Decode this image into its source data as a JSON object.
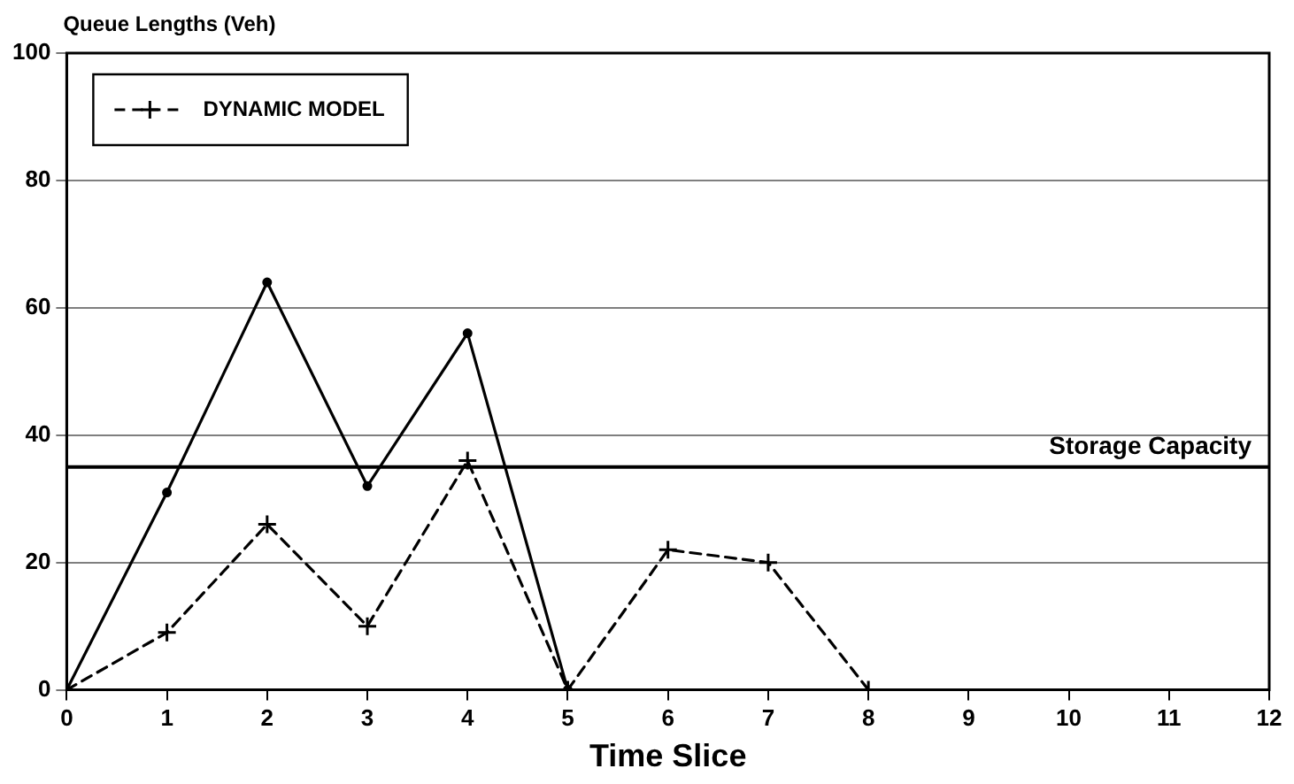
{
  "chart_data": {
    "type": "line",
    "ylabel": "Queue Lengths (Veh)",
    "xlabel": "Time Slice",
    "x": [
      0,
      1,
      2,
      3,
      4,
      5,
      6,
      7,
      8
    ],
    "series": [
      {
        "color": "#000000",
        "marker": "circle",
        "line_style": "solid",
        "values": [
          0,
          31,
          64,
          32,
          56,
          0,
          null,
          null,
          null
        ]
      },
      {
        "name": "DYNAMIC MODEL",
        "color": "#000000",
        "marker": "cross",
        "line_style": "dashed",
        "values": [
          0,
          9,
          26,
          10,
          36,
          0,
          22,
          20,
          0
        ]
      }
    ],
    "xlim": [
      0,
      12
    ],
    "xticks": [
      0,
      1,
      2,
      3,
      4,
      5,
      6,
      7,
      8,
      9,
      10,
      11,
      12
    ],
    "ylim": [
      0,
      100
    ],
    "yticks": [
      0,
      20,
      40,
      60,
      80,
      100
    ],
    "grid": "y",
    "legend": "top left",
    "ref_lines": [
      {
        "axis": "y",
        "value": 35,
        "label": "Storage Capacity",
        "color": "#000000",
        "line_style": "solid"
      }
    ]
  }
}
